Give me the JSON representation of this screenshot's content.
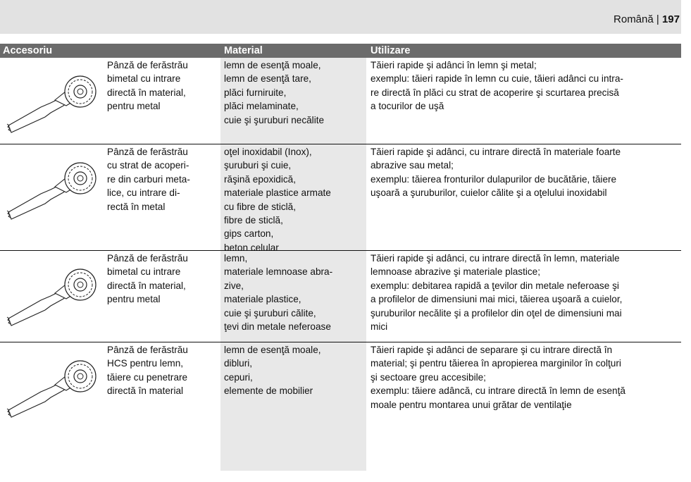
{
  "header": {
    "language": "Română",
    "separator": "|",
    "page": "197"
  },
  "table": {
    "columns": [
      "Accesoriu",
      "Material",
      "Utilizare"
    ],
    "rows": [
      {
        "accessory": [
          "Pânză de ferăstrău",
          "bimetal cu intrare",
          "directă în material,",
          "pentru metal"
        ],
        "material": [
          "lemn de esenţă moale,",
          "lemn de esenţă tare,",
          "plăci furniruite,",
          "plăci melaminate,",
          "cuie şi şuruburi necălite"
        ],
        "usage": [
          "Tăieri rapide şi adânci în lemn şi metal;",
          "exemplu: tăieri rapide în lemn cu cuie, tăieri adânci cu intra-",
          "re directă în plăci cu strat de acoperire şi scurtarea precisă",
          "a tocurilor de uşă"
        ]
      },
      {
        "accessory": [
          "Pânză de ferăstrău",
          "cu strat de acoperi-",
          "re din carburi meta-",
          "lice, cu intrare di-",
          "rectă în metal"
        ],
        "material": [
          "oţel inoxidabil (Inox),",
          "şuruburi şi cuie,",
          "răşină epoxidică,",
          "materiale plastice armate",
          "cu fibre de sticlă,",
          "fibre de sticlă,",
          "gips carton,",
          "beton celular"
        ],
        "usage": [
          "Tăieri rapide şi adânci, cu intrare directă în materiale foarte",
          "abrazive sau metal;",
          "exemplu: tăierea fronturilor dulapurilor de bucătărie, tăiere",
          "uşoară a şuruburilor, cuielor călite şi a oţelului inoxidabil"
        ]
      },
      {
        "accessory": [
          "Pânză de ferăstrău",
          "bimetal cu intrare",
          "directă în material,",
          "pentru metal"
        ],
        "material": [
          "lemn,",
          "materiale lemnoase abra-",
          "zive,",
          "materiale plastice,",
          "cuie şi şuruburi călite,",
          "ţevi din metale neferoase"
        ],
        "usage": [
          "Tăieri rapide şi adânci, cu intrare directă în lemn, materiale",
          "lemnoase abrazive şi materiale plastice;",
          "exemplu: debitarea rapidă a ţevilor din metale neferoase şi",
          "a profilelor de dimensiuni mai mici, tăierea uşoară a cuielor,",
          "şuruburilor necălite şi a profilelor din oţel de dimensiuni mai",
          "mici"
        ]
      },
      {
        "accessory": [
          "Pânză de ferăstrău",
          "HCS pentru lemn,",
          "tăiere cu penetrare",
          "directă în material"
        ],
        "material": [
          "lemn de esenţă moale,",
          "dibluri,",
          "cepuri,",
          "elemente de mobilier"
        ],
        "usage": [
          "Tăieri rapide şi adânci de separare şi cu intrare directă în",
          "material; şi pentru tăierea în apropierea marginilor în colţuri",
          "şi sectoare greu accesibile;",
          "exemplu: tăiere adâncă, cu intrare directă în lemn de esenţă",
          "moale pentru montarea unui grătar de ventilaţie"
        ]
      }
    ]
  }
}
